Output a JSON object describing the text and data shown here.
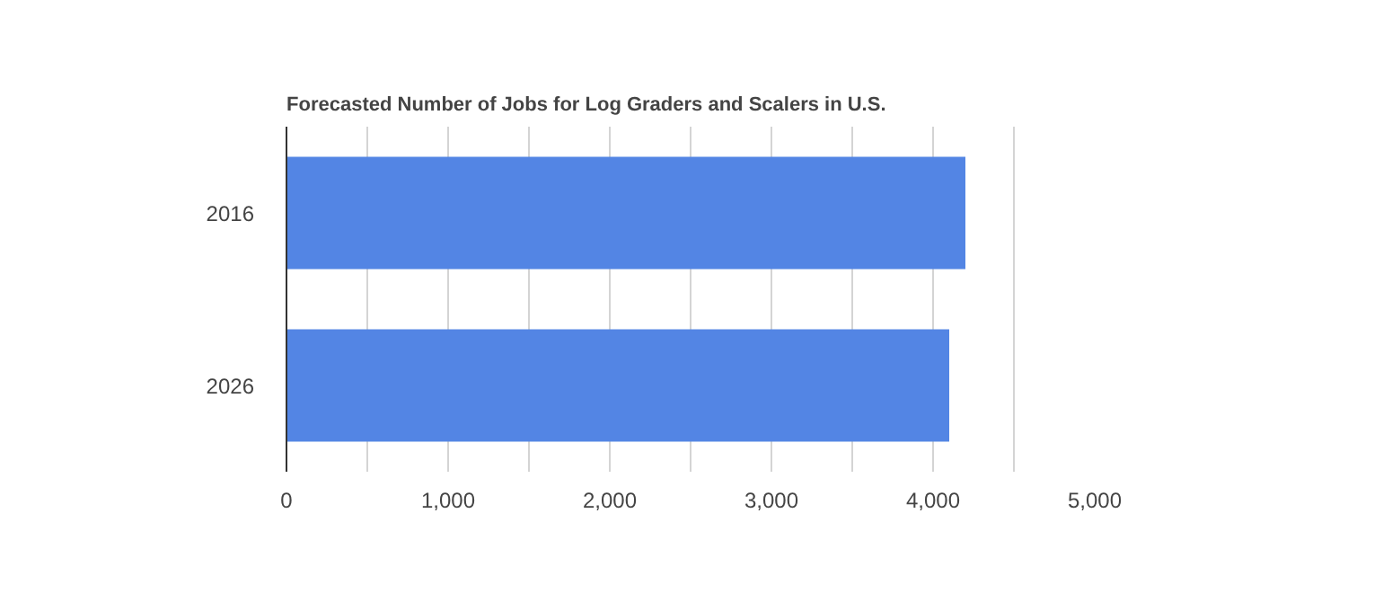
{
  "chart_data": {
    "type": "bar",
    "orientation": "horizontal",
    "title": "Forecasted Number of Jobs for Log Graders and Scalers in U.S.",
    "categories": [
      "2016",
      "2026"
    ],
    "values": [
      4200,
      4100
    ],
    "color": "#5385e4",
    "xlim": [
      0,
      5000
    ],
    "xticks": [
      0,
      {
        "value": 500,
        "label": null
      },
      "1,000",
      {
        "value": 1500,
        "label": null
      },
      {
        "value": 2000,
        "label": "2,000"
      },
      {
        "value": 2500,
        "label": null
      },
      {
        "value": 3000,
        "label": "3,000"
      },
      {
        "value": 3500,
        "label": null
      },
      {
        "value": 4000,
        "label": "4,000"
      },
      {
        "value": 4500,
        "label": null
      },
      {
        "value": 5000,
        "label": "5,000"
      }
    ],
    "grid": "x"
  }
}
